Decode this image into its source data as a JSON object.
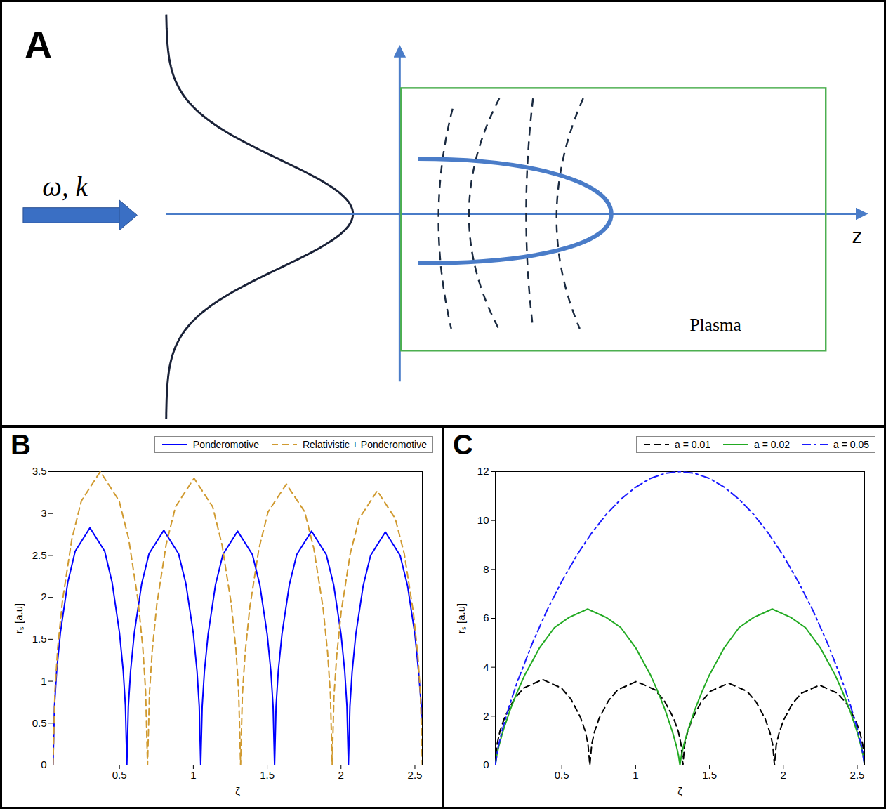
{
  "panel_labels": [
    "A",
    "B",
    "C"
  ],
  "diagram": {
    "beam_label": "ω, k⃗",
    "axis_label": "z",
    "region_label": "Plasma"
  },
  "chart_data": [
    {
      "type": "line",
      "x_label": "ζ",
      "y_label": "rₛ [a.u]",
      "xlim": [
        0.05,
        2.55
      ],
      "xticks": [
        0.5,
        1,
        1.5,
        2,
        2.5
      ],
      "ylim": [
        0,
        3.5
      ],
      "yticks": [
        0,
        0.5,
        1,
        1.5,
        2,
        2.5,
        3,
        3.5
      ],
      "legend": "top",
      "series": [
        {
          "name": "Ponderomotive",
          "color": "#0000ff",
          "line_style": "solid",
          "x": [
            0.05,
            0.06,
            0.075,
            0.1,
            0.15,
            0.2,
            0.3,
            0.4,
            0.45,
            0.5,
            0.525,
            0.54,
            0.55,
            0.56,
            0.575,
            0.6,
            0.65,
            0.7,
            0.8,
            0.9,
            0.95,
            1,
            1.025,
            1.04,
            1.05,
            1.06,
            1.075,
            1.1,
            1.15,
            1.2,
            1.3,
            1.4,
            1.45,
            1.5,
            1.525,
            1.54,
            1.55,
            1.56,
            1.575,
            1.6,
            1.65,
            1.7,
            1.8,
            1.9,
            1.95,
            2,
            2.025,
            2.04,
            2.05,
            2.06,
            2.075,
            2.1,
            2.15,
            2.2,
            2.3,
            2.4,
            2.45,
            2.5,
            2.525,
            2.55
          ],
          "values": [
            0,
            0.71,
            1.13,
            1.58,
            2.18,
            2.55,
            2.83,
            2.55,
            2.18,
            1.58,
            1.13,
            0.71,
            0,
            0.7,
            1.12,
            1.57,
            2.16,
            2.52,
            2.8,
            2.52,
            2.16,
            1.57,
            1.12,
            0.7,
            0,
            0.7,
            1.12,
            1.56,
            2.15,
            2.51,
            2.79,
            2.51,
            2.15,
            1.56,
            1.12,
            0.7,
            0,
            0.7,
            1.12,
            1.56,
            2.15,
            2.51,
            2.79,
            2.51,
            2.15,
            1.56,
            1.12,
            0.7,
            0,
            0.7,
            1.11,
            1.56,
            2.14,
            2.5,
            2.78,
            2.5,
            2.14,
            1.56,
            1.11,
            0.55
          ]
        },
        {
          "name": "Relativistic + Ponderomotive",
          "color": "#d09a30",
          "line_style": "dashed",
          "x": [
            0.05,
            0.063,
            0.082,
            0.114,
            0.178,
            0.242,
            0.37,
            0.498,
            0.562,
            0.626,
            0.658,
            0.677,
            0.69,
            0.703,
            0.722,
            0.753,
            0.816,
            0.879,
            1.005,
            1.131,
            1.194,
            1.257,
            1.289,
            1.307,
            1.32,
            1.332,
            1.351,
            1.382,
            1.444,
            1.506,
            1.63,
            1.754,
            1.816,
            1.878,
            1.909,
            1.928,
            1.94,
            1.952,
            1.971,
            2.001,
            2.062,
            2.123,
            2.245,
            2.367,
            2.428,
            2.489,
            2.52,
            2.538,
            2.55
          ],
          "values": [
            0,
            0.88,
            1.4,
            1.96,
            2.7,
            3.15,
            3.5,
            3.15,
            2.7,
            1.96,
            1.4,
            0.88,
            0,
            0.86,
            1.37,
            1.92,
            2.63,
            3.08,
            3.42,
            3.08,
            2.63,
            1.92,
            1.37,
            0.86,
            0,
            0.84,
            1.34,
            1.88,
            2.58,
            3.02,
            3.35,
            3.02,
            2.58,
            1.88,
            1.34,
            0.84,
            0,
            0.82,
            1.31,
            1.83,
            2.52,
            2.94,
            3.27,
            2.94,
            2.52,
            1.83,
            1.31,
            0.82,
            0
          ]
        }
      ]
    },
    {
      "type": "line",
      "x_label": "ζ",
      "y_label": "rₛ [a.u]",
      "xlim": [
        0.05,
        2.55
      ],
      "xticks": [
        0.5,
        1,
        1.5,
        2,
        2.5
      ],
      "ylim": [
        0,
        12
      ],
      "yticks": [
        0,
        2,
        4,
        6,
        8,
        10,
        12
      ],
      "legend": "top",
      "series": [
        {
          "name": "a = 0.01",
          "color": "#000000",
          "line_style": "dashed",
          "x": [
            0.05,
            0.063,
            0.082,
            0.114,
            0.178,
            0.242,
            0.37,
            0.498,
            0.562,
            0.626,
            0.658,
            0.677,
            0.69,
            0.703,
            0.722,
            0.753,
            0.816,
            0.879,
            1.005,
            1.131,
            1.194,
            1.257,
            1.289,
            1.307,
            1.32,
            1.332,
            1.351,
            1.382,
            1.444,
            1.506,
            1.63,
            1.754,
            1.816,
            1.878,
            1.909,
            1.928,
            1.94,
            1.952,
            1.971,
            2.001,
            2.062,
            2.123,
            2.245,
            2.367,
            2.428,
            2.489,
            2.52,
            2.538,
            2.55
          ],
          "values": [
            0,
            0.88,
            1.4,
            1.96,
            2.7,
            3.15,
            3.5,
            3.15,
            2.7,
            1.96,
            1.4,
            0.88,
            0,
            0.86,
            1.37,
            1.92,
            2.63,
            3.08,
            3.42,
            3.08,
            2.63,
            1.92,
            1.37,
            0.86,
            0,
            0.84,
            1.34,
            1.88,
            2.58,
            3.02,
            3.35,
            3.02,
            2.58,
            1.88,
            1.34,
            0.84,
            0,
            0.82,
            1.31,
            1.83,
            2.52,
            2.94,
            3.27,
            2.94,
            2.52,
            1.83,
            1.31,
            0.82,
            0
          ]
        },
        {
          "name": "a = 0.02",
          "color": "#22aa22",
          "line_style": "solid",
          "x": [
            0.05,
            0.06,
            0.075,
            0.1,
            0.15,
            0.2,
            0.25,
            0.35,
            0.45,
            0.55,
            0.675,
            0.8,
            0.9,
            1,
            1.1,
            1.15,
            1.2,
            1.25,
            1.275,
            1.29,
            1.3,
            1.31,
            1.325,
            1.35,
            1.4,
            1.45,
            1.5,
            1.6,
            1.7,
            1.8,
            1.925,
            2.05,
            2.15,
            2.25,
            2.35,
            2.4,
            2.45,
            2.5,
            2.525,
            2.54,
            2.55
          ],
          "values": [
            0,
            0.4,
            0.8,
            1.35,
            2.25,
            3.01,
            3.69,
            4.8,
            5.62,
            6.04,
            6.38,
            6.04,
            5.62,
            4.8,
            3.69,
            3.01,
            2.25,
            1.35,
            0.8,
            0.4,
            0,
            0.4,
            0.8,
            1.35,
            2.25,
            3.01,
            3.69,
            4.8,
            5.62,
            6.04,
            6.38,
            6.04,
            5.62,
            4.8,
            3.69,
            3.01,
            2.25,
            1.35,
            0.8,
            0.4,
            0
          ]
        },
        {
          "name": "a = 0.05",
          "color": "#1a1aff",
          "line_style": "dashdot",
          "x": [
            0.05,
            0.07,
            0.1,
            0.15,
            0.2,
            0.3,
            0.4,
            0.5,
            0.6,
            0.7,
            0.8,
            0.9,
            1,
            1.1,
            1.2,
            1.3,
            1.4,
            1.5,
            1.6,
            1.7,
            1.8,
            1.9,
            2,
            2.1,
            2.2,
            2.3,
            2.4,
            2.45,
            2.5,
            2.53,
            2.55
          ],
          "values": [
            0,
            0.76,
            1.5,
            2.53,
            3.42,
            4.97,
            6.33,
            7.51,
            8.56,
            9.47,
            10.24,
            10.87,
            11.36,
            11.72,
            11.93,
            12,
            11.93,
            11.72,
            11.36,
            10.87,
            10.24,
            9.47,
            8.56,
            7.51,
            6.33,
            4.97,
            3.42,
            2.53,
            1.5,
            0.76,
            0
          ]
        }
      ]
    }
  ]
}
